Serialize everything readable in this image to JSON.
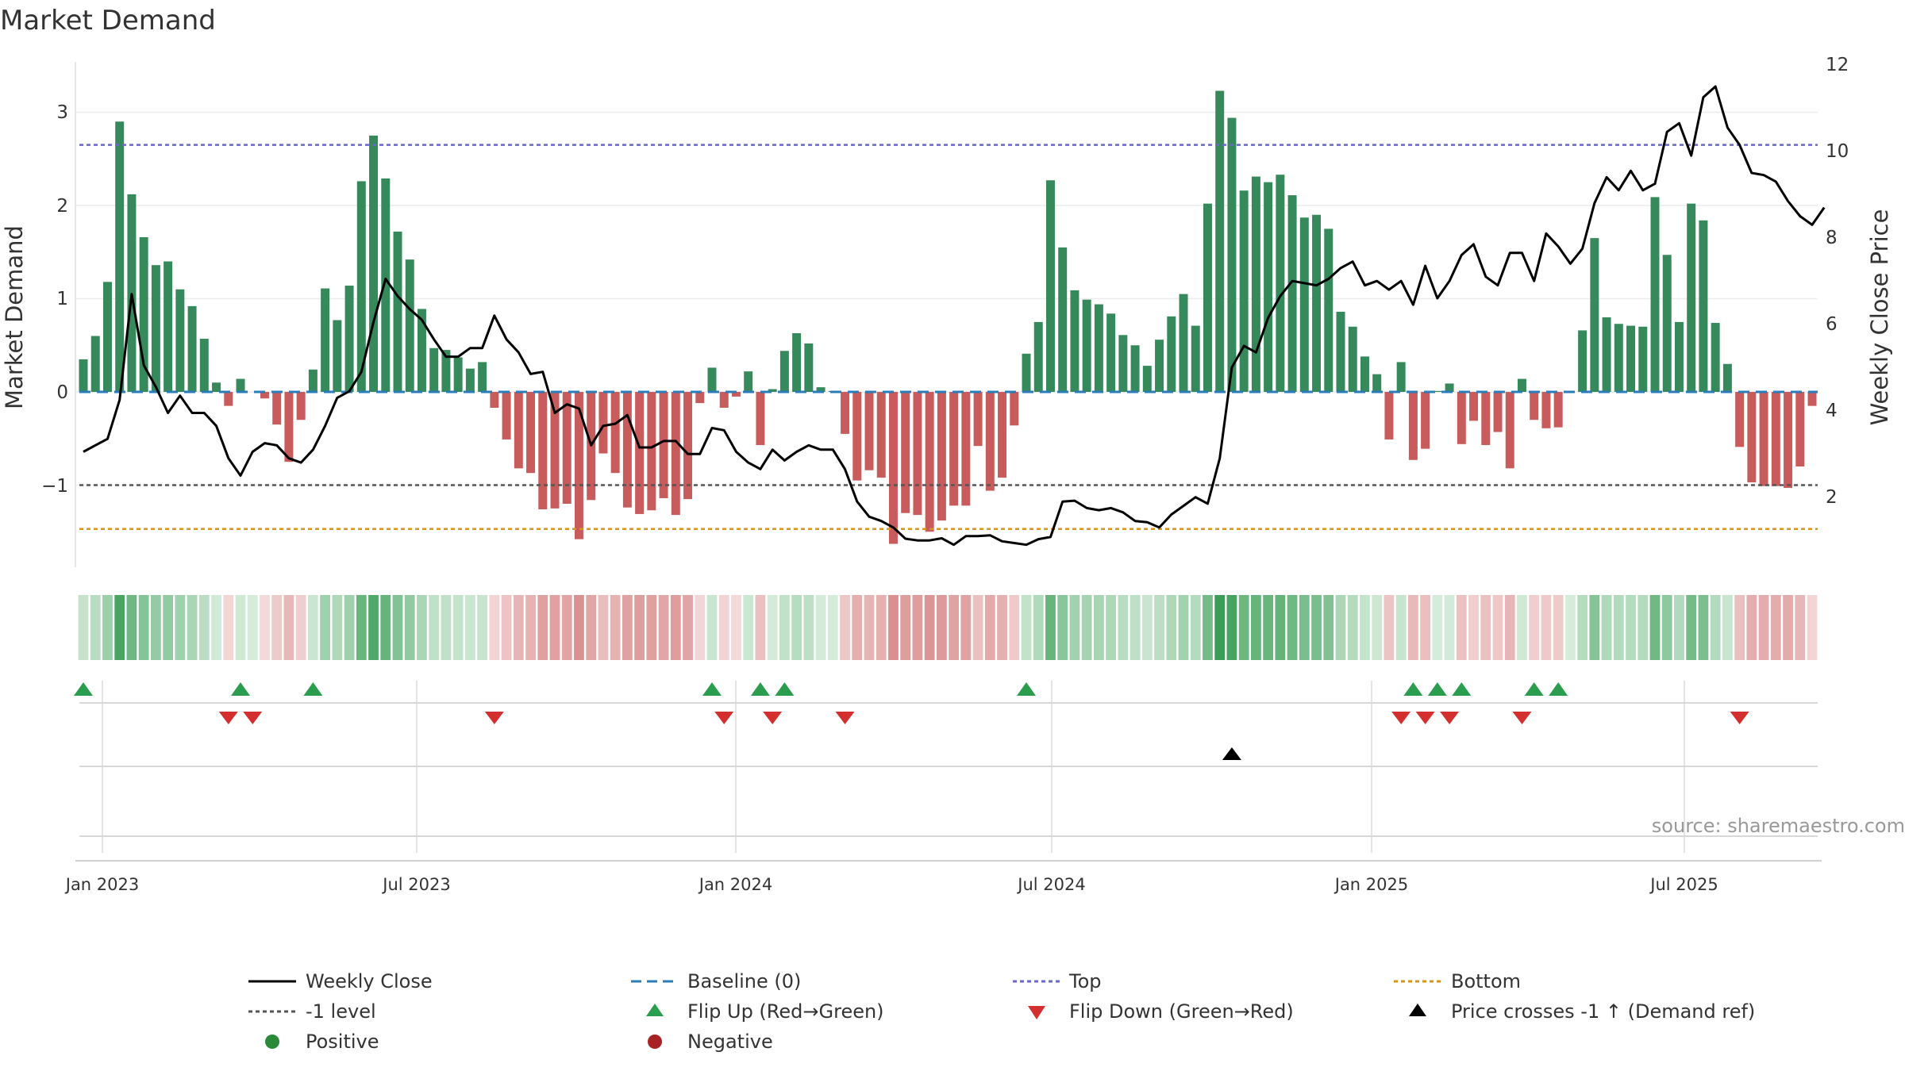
{
  "chart_data": {
    "type": "bar",
    "title": "Market Demand",
    "ylabel": "Market Demand",
    "y2label": "Weekly Close Price",
    "ylim": [
      -1.9,
      3.55
    ],
    "y2lim": [
      0.6,
      12.4
    ],
    "yticks": [
      "3",
      "2",
      "1",
      "0",
      "−1"
    ],
    "y2ticks": [
      "12",
      "10",
      "8",
      "6",
      "4",
      "2"
    ],
    "x_tick_labels": [
      "Jan 2023",
      "Jul 2023",
      "Jan 2024",
      "Jul 2024",
      "Jan 2025",
      "Jul 2025"
    ],
    "source": "source: sharemaestro.com",
    "reference_lines": {
      "top": 2.65,
      "bottom": -1.47,
      "minus_one": -1.0,
      "baseline": 0
    },
    "demand": [
      0.35,
      0.6,
      1.18,
      2.9,
      2.12,
      1.66,
      1.36,
      1.4,
      1.1,
      0.92,
      0.57,
      0.1,
      -0.15,
      0.14,
      0.0,
      -0.07,
      -0.35,
      -0.75,
      -0.3,
      0.24,
      1.11,
      0.77,
      1.14,
      2.26,
      2.75,
      2.29,
      1.72,
      1.42,
      0.89,
      0.47,
      0.45,
      0.37,
      0.25,
      0.32,
      -0.17,
      -0.51,
      -0.82,
      -0.87,
      -1.26,
      -1.25,
      -1.2,
      -1.58,
      -1.16,
      -0.66,
      -0.87,
      -1.24,
      -1.31,
      -1.27,
      -1.14,
      -1.32,
      -1.15,
      -0.12,
      0.26,
      -0.17,
      -0.05,
      0.22,
      -0.57,
      0.03,
      0.44,
      0.63,
      0.52,
      0.05,
      0.01,
      -0.45,
      -0.95,
      -0.84,
      -0.92,
      -1.63,
      -1.3,
      -1.32,
      -1.5,
      -1.38,
      -1.22,
      -1.22,
      -0.58,
      -1.06,
      -0.92,
      -0.36,
      0.41,
      0.75,
      2.27,
      1.55,
      1.09,
      0.99,
      0.94,
      0.84,
      0.61,
      0.5,
      0.28,
      0.56,
      0.81,
      1.05,
      0.71,
      2.02,
      3.23,
      2.94,
      2.16,
      2.31,
      2.25,
      2.33,
      2.11,
      1.87,
      1.9,
      1.75,
      0.86,
      0.7,
      0.38,
      0.19,
      -0.51,
      0.32,
      -0.73,
      -0.61,
      0.01,
      0.09,
      -0.56,
      -0.31,
      -0.57,
      -0.43,
      -0.82,
      0.14,
      -0.3,
      -0.39,
      -0.38,
      0.0,
      0.66,
      1.65,
      0.8,
      0.73,
      0.71,
      0.7,
      2.09,
      1.47,
      0.75,
      2.02,
      1.84,
      0.74,
      0.3,
      -0.59,
      -0.97,
      -1.01,
      -1.01,
      -1.03,
      -0.8,
      -0.15
    ],
    "weekly_close": [
      3.0,
      3.15,
      3.3,
      4.2,
      6.65,
      5.0,
      4.5,
      3.9,
      4.3,
      3.9,
      3.9,
      3.6,
      2.85,
      2.45,
      3.0,
      3.2,
      3.15,
      2.85,
      2.75,
      3.05,
      3.6,
      4.25,
      4.4,
      4.85,
      6.0,
      7.0,
      6.6,
      6.3,
      6.05,
      5.6,
      5.2,
      5.2,
      5.4,
      5.4,
      6.15,
      5.6,
      5.3,
      4.8,
      4.85,
      3.9,
      4.1,
      4.0,
      3.15,
      3.6,
      3.65,
      3.85,
      3.1,
      3.1,
      3.25,
      3.25,
      2.95,
      2.95,
      3.55,
      3.5,
      3.0,
      2.75,
      2.6,
      3.05,
      2.8,
      3.0,
      3.15,
      3.05,
      3.05,
      2.6,
      1.85,
      1.5,
      1.4,
      1.25,
      0.99,
      0.95,
      0.95,
      1.0,
      0.85,
      1.05,
      1.05,
      1.07,
      0.93,
      0.89,
      0.85,
      0.98,
      1.03,
      1.85,
      1.87,
      1.7,
      1.65,
      1.7,
      1.6,
      1.4,
      1.37,
      1.25,
      1.55,
      1.75,
      1.95,
      1.8,
      2.85,
      4.95,
      5.45,
      5.3,
      6.1,
      6.6,
      6.95,
      6.9,
      6.85,
      7.0,
      7.25,
      7.4,
      6.85,
      6.95,
      6.75,
      6.95,
      6.4,
      7.3,
      6.55,
      6.95,
      7.55,
      7.8,
      7.05,
      6.85,
      7.6,
      7.6,
      6.95,
      8.05,
      7.75,
      7.35,
      7.7,
      8.75,
      9.35,
      9.05,
      9.5,
      9.05,
      9.2,
      10.4,
      10.6,
      9.85,
      11.2,
      11.45,
      10.5,
      10.1,
      9.45,
      9.4,
      9.25,
      8.8,
      8.45,
      8.25,
      8.65
    ],
    "flip_up_indices": [
      0,
      13,
      19,
      52,
      56,
      58,
      78,
      110,
      112,
      114,
      120,
      122
    ],
    "flip_down_indices": [
      12,
      14,
      34,
      53,
      57,
      63,
      109,
      111,
      113,
      119,
      137
    ],
    "price_cross_indices": [
      95
    ],
    "legend": [
      "Weekly Close",
      "Baseline (0)",
      "Top",
      "Bottom",
      "-1 level",
      "Flip Up (Red→Green)",
      "Flip Down (Green→Red)",
      "Price crosses -1 ↑ (Demand ref)",
      "Positive",
      "Negative"
    ],
    "colors": {
      "positive_bar": "#35895a",
      "negative_bar": "#c85b5b",
      "line": "#000000",
      "baseline": "#2a7db8",
      "top": "#6a68c8",
      "bottom": "#d9941a",
      "minus_one": "#555555",
      "flip_up": "#2a9d4f",
      "flip_down": "#d32f2f",
      "cross": "#000000",
      "positive_dot": "#2a8a3a",
      "negative_dot": "#a82424"
    }
  }
}
